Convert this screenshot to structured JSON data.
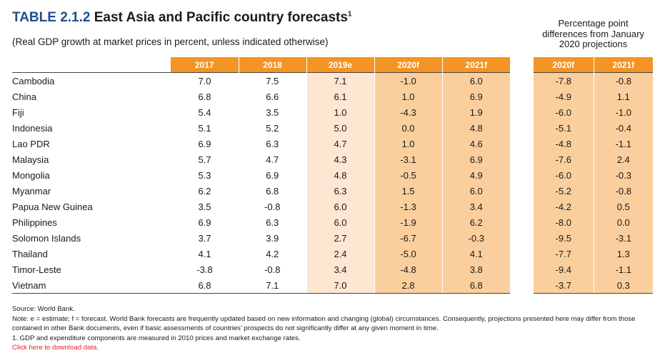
{
  "title": {
    "label": "TABLE 2.1.2",
    "text": "East Asia and Pacific country forecasts",
    "sup": "1"
  },
  "subtitle": "(Real GDP growth at market prices in percent, unless indicated otherwise)",
  "pp_header": [
    "Percentage point",
    "differences from January",
    "2020 projections"
  ],
  "main_headers": [
    "2017",
    "2018",
    "2019e",
    "2020f",
    "2021f"
  ],
  "diff_headers": [
    "2020f",
    "2021f"
  ],
  "rows": [
    {
      "country": "Cambodia",
      "values": [
        "7.0",
        "7.5",
        "7.1",
        "-1.0",
        "6.0"
      ],
      "diffs": [
        "-7.8",
        "-0.8"
      ]
    },
    {
      "country": "China",
      "values": [
        "6.8",
        "6.6",
        "6.1",
        "1.0",
        "6.9"
      ],
      "diffs": [
        "-4.9",
        "1.1"
      ]
    },
    {
      "country": "Fiji",
      "values": [
        "5.4",
        "3.5",
        "1.0",
        "-4.3",
        "1.9"
      ],
      "diffs": [
        "-6.0",
        "-1.0"
      ]
    },
    {
      "country": "Indonesia",
      "values": [
        "5.1",
        "5.2",
        "5.0",
        "0.0",
        "4.8"
      ],
      "diffs": [
        "-5.1",
        "-0.4"
      ]
    },
    {
      "country": "Lao PDR",
      "values": [
        "6.9",
        "6.3",
        "4.7",
        "1.0",
        "4.6"
      ],
      "diffs": [
        "-4.8",
        "-1.1"
      ]
    },
    {
      "country": "Malaysia",
      "values": [
        "5.7",
        "4.7",
        "4.3",
        "-3.1",
        "6.9"
      ],
      "diffs": [
        "-7.6",
        "2.4"
      ]
    },
    {
      "country": "Mongolia",
      "values": [
        "5.3",
        "6.9",
        "4.8",
        "-0.5",
        "4.9"
      ],
      "diffs": [
        "-6.0",
        "-0.3"
      ]
    },
    {
      "country": "Myanmar",
      "values": [
        "6.2",
        "6.8",
        "6.3",
        "1.5",
        "6.0"
      ],
      "diffs": [
        "-5.2",
        "-0.8"
      ]
    },
    {
      "country": "Papua New Guinea",
      "values": [
        "3.5",
        "-0.8",
        "6.0",
        "-1.3",
        "3.4"
      ],
      "diffs": [
        "-4.2",
        "0.5"
      ]
    },
    {
      "country": "Philippines",
      "values": [
        "6.9",
        "6.3",
        "6.0",
        "-1.9",
        "6.2"
      ],
      "diffs": [
        "-8.0",
        "0.0"
      ]
    },
    {
      "country": "Solomon Islands",
      "values": [
        "3.7",
        "3.9",
        "2.7",
        "-6.7",
        "-0.3"
      ],
      "diffs": [
        "-9.5",
        "-3.1"
      ]
    },
    {
      "country": "Thailand",
      "values": [
        "4.1",
        "4.2",
        "2.4",
        "-5.0",
        "4.1"
      ],
      "diffs": [
        "-7.7",
        "1.3"
      ]
    },
    {
      "country": "Timor-Leste",
      "values": [
        "-3.8",
        "-0.8",
        "3.4",
        "-4.8",
        "3.8"
      ],
      "diffs": [
        "-9.4",
        "-1.1"
      ]
    },
    {
      "country": "Vietnam",
      "values": [
        "6.8",
        "7.1",
        "7.0",
        "2.8",
        "6.8"
      ],
      "diffs": [
        "-3.7",
        "0.3"
      ]
    }
  ],
  "notes": {
    "source": "Source: World Bank.",
    "note": "Note: e = estimate; f = forecast.  World Bank forecasts are frequently updated based on new information and changing (global) circumstances. Consequently, projections presented here may differ from those contained in other Bank documents, even if basic assessments of countries’ prospects do not significantly differ at any given moment in time.",
    "footnote": "1. GDP and expenditure components are measured in 2010 prices and market exchange rates.",
    "link": "Click here to download data."
  }
}
